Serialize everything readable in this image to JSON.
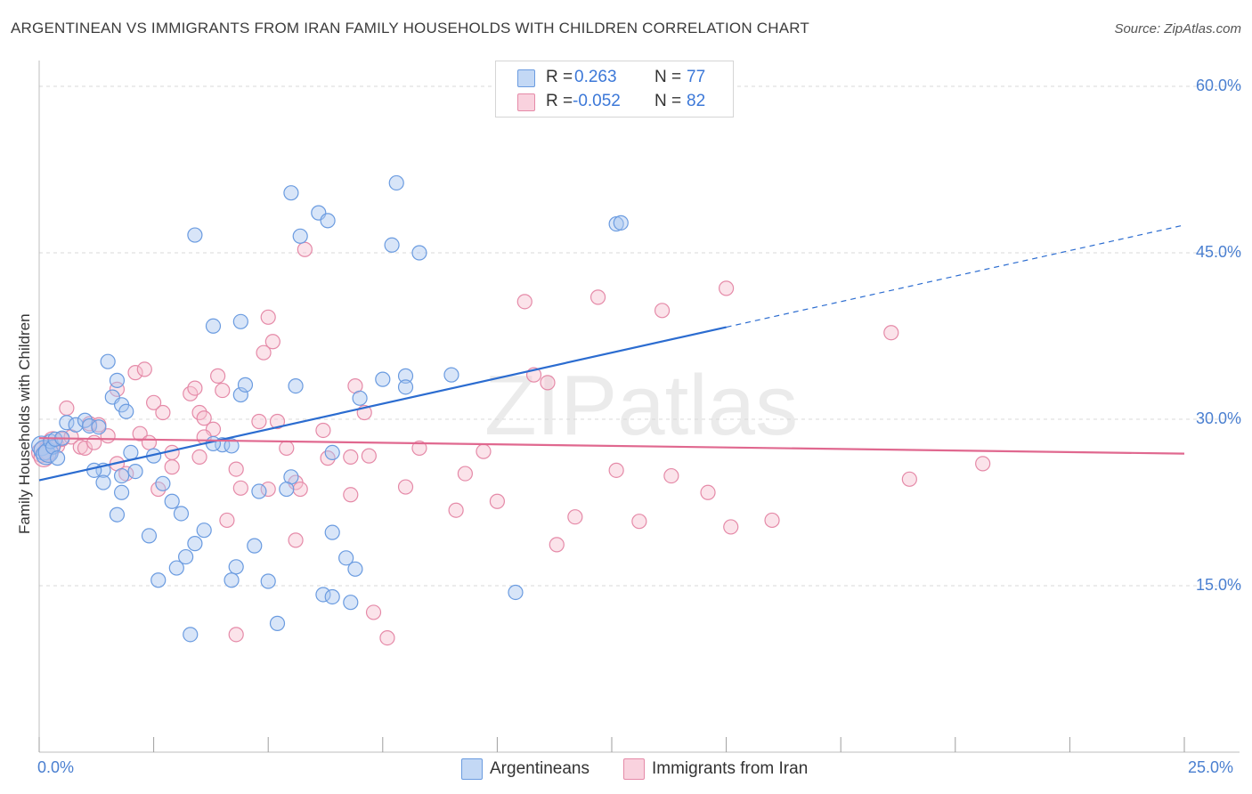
{
  "title": "ARGENTINEAN VS IMMIGRANTS FROM IRAN FAMILY HOUSEHOLDS WITH CHILDREN CORRELATION CHART",
  "source": "Source: ZipAtlas.com",
  "watermark": "ZIPatlas",
  "colors": {
    "blue_fill": "#a9c6f0",
    "blue_stroke": "#6a9be0",
    "blue_line": "#2b6cd0",
    "pink_fill": "#f6c1d1",
    "pink_stroke": "#e58aa8",
    "pink_line": "#e0688f",
    "grid": "#d9d9d9",
    "axis_text": "#4a7fd0"
  },
  "legend": {
    "rows": [
      {
        "r_label": "R =",
        "r_value": "0.263",
        "n_label": "N =",
        "n_value": "77"
      },
      {
        "r_label": "R =",
        "r_value": "-0.052",
        "n_label": "N =",
        "n_value": "82"
      }
    ]
  },
  "bottom_legend": [
    "Argentineans",
    "Immigrants from Iran"
  ],
  "chart_data": {
    "type": "scatter",
    "title": "ARGENTINEAN VS IMMIGRANTS FROM IRAN FAMILY HOUSEHOLDS WITH CHILDREN CORRELATION CHART",
    "xlabel": "",
    "ylabel": "Family Households with Children",
    "xlim": [
      0,
      25
    ],
    "ylim": [
      0,
      61
    ],
    "x_tick_labels": [
      "0.0%",
      "25.0%"
    ],
    "y_ticks": [
      15,
      30,
      45,
      60
    ],
    "y_tick_labels": [
      "15.0%",
      "30.0%",
      "45.0%",
      "60.0%"
    ],
    "grid": true,
    "legend_position": "top-center",
    "series": [
      {
        "name": "Argentineans",
        "r": 0.263,
        "n": 77,
        "trend": {
          "x0": 0,
          "y0": 24.5,
          "x1": 15,
          "y1": 38.3,
          "dash_to_x": 25,
          "dash_to_y": 47.5
        },
        "points": [
          [
            0.05,
            27.6
          ],
          [
            0.1,
            27.2
          ],
          [
            0.15,
            26.8
          ],
          [
            0.2,
            27.0
          ],
          [
            0.25,
            28.0
          ],
          [
            0.3,
            27.5
          ],
          [
            0.35,
            28.2
          ],
          [
            0.4,
            26.5
          ],
          [
            0.5,
            28.3
          ],
          [
            0.6,
            29.7
          ],
          [
            0.8,
            29.5
          ],
          [
            1.0,
            29.9
          ],
          [
            1.1,
            29.4
          ],
          [
            1.3,
            29.3
          ],
          [
            1.5,
            35.2
          ],
          [
            1.6,
            32.0
          ],
          [
            1.7,
            33.5
          ],
          [
            1.8,
            31.3
          ],
          [
            1.9,
            30.7
          ],
          [
            2.0,
            27.0
          ],
          [
            2.1,
            25.3
          ],
          [
            1.4,
            25.4
          ],
          [
            1.4,
            24.3
          ],
          [
            1.2,
            25.4
          ],
          [
            1.8,
            24.9
          ],
          [
            1.8,
            23.4
          ],
          [
            2.5,
            26.7
          ],
          [
            2.7,
            24.2
          ],
          [
            2.9,
            22.6
          ],
          [
            3.1,
            21.5
          ],
          [
            1.7,
            21.4
          ],
          [
            2.4,
            19.5
          ],
          [
            3.4,
            18.8
          ],
          [
            3.6,
            20.0
          ],
          [
            4.0,
            27.7
          ],
          [
            4.2,
            27.6
          ],
          [
            3.2,
            17.6
          ],
          [
            3.0,
            16.6
          ],
          [
            2.6,
            15.5
          ],
          [
            4.3,
            16.7
          ],
          [
            4.2,
            15.5
          ],
          [
            4.7,
            18.6
          ],
          [
            5.0,
            15.4
          ],
          [
            3.3,
            10.6
          ],
          [
            5.2,
            11.6
          ],
          [
            4.8,
            23.5
          ],
          [
            5.5,
            24.8
          ],
          [
            5.4,
            23.7
          ],
          [
            5.6,
            33.0
          ],
          [
            4.4,
            32.2
          ],
          [
            4.5,
            33.1
          ],
          [
            3.8,
            38.4
          ],
          [
            4.4,
            38.8
          ],
          [
            3.4,
            46.6
          ],
          [
            5.5,
            50.4
          ],
          [
            5.7,
            46.5
          ],
          [
            6.1,
            48.6
          ],
          [
            6.3,
            47.9
          ],
          [
            6.4,
            27.0
          ],
          [
            6.2,
            14.2
          ],
          [
            6.4,
            14.0
          ],
          [
            6.4,
            19.8
          ],
          [
            6.7,
            17.5
          ],
          [
            6.9,
            16.5
          ],
          [
            6.8,
            13.5
          ],
          [
            7.0,
            31.9
          ],
          [
            7.5,
            33.6
          ],
          [
            8.0,
            33.9
          ],
          [
            8.0,
            32.9
          ],
          [
            7.7,
            45.7
          ],
          [
            7.8,
            51.3
          ],
          [
            8.3,
            45.0
          ],
          [
            9.0,
            34.0
          ],
          [
            10.4,
            14.4
          ],
          [
            12.6,
            47.6
          ],
          [
            12.7,
            47.7
          ],
          [
            3.8,
            27.8
          ]
        ]
      },
      {
        "name": "Immigrants from Iran",
        "r": -0.052,
        "n": 82,
        "trend": {
          "x0": 0,
          "y0": 28.3,
          "x1": 25,
          "y1": 26.9
        },
        "points": [
          [
            0.05,
            27.0
          ],
          [
            0.1,
            26.6
          ],
          [
            0.2,
            27.2
          ],
          [
            0.3,
            28.0
          ],
          [
            0.4,
            27.6
          ],
          [
            0.5,
            28.2
          ],
          [
            0.6,
            31.0
          ],
          [
            0.7,
            28.4
          ],
          [
            0.9,
            27.5
          ],
          [
            1.0,
            27.4
          ],
          [
            1.1,
            29.6
          ],
          [
            1.2,
            27.9
          ],
          [
            1.3,
            29.5
          ],
          [
            1.5,
            28.5
          ],
          [
            1.7,
            26.0
          ],
          [
            2.1,
            34.2
          ],
          [
            2.3,
            34.5
          ],
          [
            1.7,
            32.7
          ],
          [
            2.5,
            31.5
          ],
          [
            2.7,
            30.6
          ],
          [
            2.2,
            28.7
          ],
          [
            2.4,
            27.9
          ],
          [
            2.9,
            27.0
          ],
          [
            2.9,
            25.7
          ],
          [
            3.3,
            32.3
          ],
          [
            3.4,
            32.8
          ],
          [
            3.5,
            30.6
          ],
          [
            3.6,
            30.1
          ],
          [
            3.8,
            29.1
          ],
          [
            3.6,
            28.4
          ],
          [
            3.5,
            26.6
          ],
          [
            3.9,
            33.9
          ],
          [
            4.0,
            32.6
          ],
          [
            2.6,
            23.7
          ],
          [
            1.9,
            25.1
          ],
          [
            4.3,
            25.5
          ],
          [
            4.4,
            23.8
          ],
          [
            4.8,
            29.8
          ],
          [
            4.9,
            36.0
          ],
          [
            5.0,
            39.2
          ],
          [
            5.1,
            37.0
          ],
          [
            5.0,
            23.7
          ],
          [
            5.2,
            29.8
          ],
          [
            5.4,
            27.4
          ],
          [
            5.6,
            24.3
          ],
          [
            5.7,
            23.7
          ],
          [
            5.6,
            19.1
          ],
          [
            4.1,
            20.9
          ],
          [
            4.3,
            10.6
          ],
          [
            5.8,
            45.3
          ],
          [
            6.2,
            29.0
          ],
          [
            6.3,
            26.5
          ],
          [
            6.8,
            23.2
          ],
          [
            6.8,
            26.6
          ],
          [
            6.9,
            33.0
          ],
          [
            7.1,
            30.6
          ],
          [
            7.2,
            26.7
          ],
          [
            7.3,
            12.6
          ],
          [
            7.6,
            10.3
          ],
          [
            8.0,
            23.9
          ],
          [
            8.3,
            27.4
          ],
          [
            9.1,
            21.8
          ],
          [
            9.3,
            25.1
          ],
          [
            9.7,
            27.1
          ],
          [
            10.0,
            22.6
          ],
          [
            10.6,
            40.6
          ],
          [
            10.8,
            34.0
          ],
          [
            11.1,
            33.3
          ],
          [
            11.3,
            18.7
          ],
          [
            11.7,
            21.2
          ],
          [
            12.2,
            41.0
          ],
          [
            12.6,
            25.4
          ],
          [
            13.1,
            20.8
          ],
          [
            13.6,
            39.8
          ],
          [
            13.8,
            24.9
          ],
          [
            14.6,
            23.4
          ],
          [
            15.1,
            20.3
          ],
          [
            15.0,
            41.8
          ],
          [
            16.0,
            20.9
          ],
          [
            18.6,
            37.8
          ],
          [
            19.0,
            24.6
          ],
          [
            20.6,
            26.0
          ]
        ]
      }
    ]
  }
}
